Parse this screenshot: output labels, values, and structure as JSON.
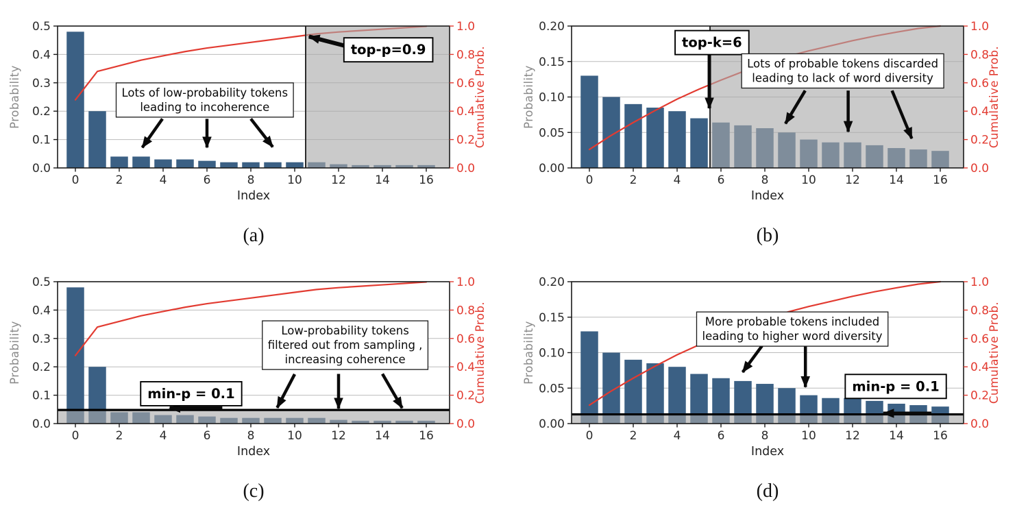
{
  "figure": {
    "xlabel": "Index",
    "ylabel_left": "Probability",
    "ylabel_right": "Cumulative Prob.",
    "colors": {
      "background": "#ffffff",
      "bar": "#3b6084",
      "bar_excluded_appearance": "#8095ab",
      "cumulative_line": "#e23b31",
      "overlay": "rgba(170,170,170,0.62)",
      "grid": "#bcbcbc",
      "spine": "#1a1a1a",
      "tick_label": "#2b2b2b",
      "axis_label_left": "#8a8a8a",
      "axis_label_right": "#e23b31",
      "arrow": "#0a0a0a",
      "annotation_box_border": "#1a1a1a",
      "threshold_line": "#000000",
      "shade_edge": "#2b2b2b",
      "caption": "#111111"
    }
  },
  "chart_data": [
    {
      "id": "a",
      "caption": "(a)",
      "type": "bar+line",
      "xlabel": "Index",
      "ylabel": "Probability",
      "ylabel_right": "Cumulative Prob.",
      "x": [
        0,
        1,
        2,
        3,
        4,
        5,
        6,
        7,
        8,
        9,
        10,
        11,
        12,
        13,
        14,
        15,
        16
      ],
      "bars": [
        0.48,
        0.2,
        0.04,
        0.04,
        0.03,
        0.03,
        0.025,
        0.02,
        0.02,
        0.02,
        0.02,
        0.02,
        0.013,
        0.01,
        0.01,
        0.01,
        0.01
      ],
      "cumulative": [
        0.48,
        0.68,
        0.72,
        0.76,
        0.79,
        0.82,
        0.845,
        0.865,
        0.885,
        0.905,
        0.925,
        0.945,
        0.958,
        0.968,
        0.978,
        0.988,
        0.998
      ],
      "ylim": [
        0,
        0.5
      ],
      "ytick_vals": [
        0,
        0.1,
        0.2,
        0.3,
        0.4,
        0.5
      ],
      "ytick_labels": [
        "0.0",
        "0.1",
        "0.2",
        "0.3",
        "0.4",
        "0.5"
      ],
      "right_tick_vals": [
        0,
        0.2,
        0.4,
        0.6,
        0.8,
        1.0
      ],
      "right_tick_labels": [
        "0.0",
        "0.2",
        "0.4",
        "0.6",
        "0.8",
        "1.0"
      ],
      "xticks": [
        0,
        2,
        4,
        6,
        8,
        10,
        12,
        14,
        16
      ],
      "shade": {
        "mode": "right_of_x",
        "x": 10.5
      },
      "boxes": [
        {
          "style": "note",
          "lines": [
            "Lots of low-probability tokens",
            "leading to incoherence"
          ],
          "cx": 5.9,
          "cy": 0.24
        },
        {
          "style": "label",
          "lines": [
            "top-p=0.9"
          ],
          "cx": 14.27,
          "cy": 0.417
        }
      ],
      "arrows": [
        [
          3.97,
          0.173,
          3.05,
          0.072,
          4.5
        ],
        [
          6.0,
          0.173,
          6.0,
          0.072,
          4.5
        ],
        [
          8.0,
          0.173,
          9.0,
          0.074,
          4.5
        ],
        [
          12.26,
          0.431,
          10.65,
          0.463,
          6
        ]
      ]
    },
    {
      "id": "b",
      "caption": "(b)",
      "type": "bar+line",
      "xlabel": "Index",
      "ylabel": "Probability",
      "ylabel_right": "Cumulative Prob.",
      "x": [
        0,
        1,
        2,
        3,
        4,
        5,
        6,
        7,
        8,
        9,
        10,
        11,
        12,
        13,
        14,
        15,
        16
      ],
      "bars": [
        0.13,
        0.1,
        0.09,
        0.085,
        0.08,
        0.07,
        0.064,
        0.06,
        0.056,
        0.05,
        0.04,
        0.036,
        0.036,
        0.032,
        0.028,
        0.026,
        0.024
      ],
      "cumulative": [
        0.13,
        0.23,
        0.32,
        0.405,
        0.485,
        0.555,
        0.619,
        0.679,
        0.735,
        0.785,
        0.825,
        0.861,
        0.897,
        0.929,
        0.957,
        0.983,
        1.0
      ],
      "ylim": [
        0,
        0.2
      ],
      "ytick_vals": [
        0,
        0.05,
        0.1,
        0.15,
        0.2
      ],
      "ytick_labels": [
        "0.00",
        "0.05",
        "0.10",
        "0.15",
        "0.20"
      ],
      "right_tick_vals": [
        0,
        0.2,
        0.4,
        0.6,
        0.8,
        1.0
      ],
      "right_tick_labels": [
        "0.0",
        "0.2",
        "0.4",
        "0.6",
        "0.8",
        "1.0"
      ],
      "xticks": [
        0,
        2,
        4,
        6,
        8,
        10,
        12,
        14,
        16
      ],
      "shade": {
        "mode": "right_of_x",
        "x": 5.5
      },
      "boxes": [
        {
          "style": "label",
          "lines": [
            "top-k=6"
          ],
          "cx": 5.59,
          "cy": 0.177
        },
        {
          "style": "note",
          "lines": [
            "Lots of probable tokens discarded",
            "leading to lack of word diversity"
          ],
          "cx": 11.55,
          "cy": 0.137
        }
      ],
      "arrows": [
        [
          5.47,
          0.16,
          5.47,
          0.084,
          5
        ],
        [
          9.84,
          0.109,
          8.94,
          0.0625,
          4.5
        ],
        [
          11.8,
          0.109,
          11.8,
          0.051,
          4.5
        ],
        [
          13.8,
          0.109,
          14.7,
          0.0415,
          4.5
        ]
      ]
    },
    {
      "id": "c",
      "caption": "(c)",
      "type": "bar+line",
      "xlabel": "Index",
      "ylabel": "Probability",
      "ylabel_right": "Cumulative Prob.",
      "x": [
        0,
        1,
        2,
        3,
        4,
        5,
        6,
        7,
        8,
        9,
        10,
        11,
        12,
        13,
        14,
        15,
        16
      ],
      "bars": [
        0.48,
        0.2,
        0.04,
        0.04,
        0.03,
        0.03,
        0.025,
        0.02,
        0.02,
        0.02,
        0.02,
        0.02,
        0.013,
        0.01,
        0.01,
        0.01,
        0.01
      ],
      "cumulative": [
        0.48,
        0.68,
        0.72,
        0.76,
        0.79,
        0.82,
        0.845,
        0.865,
        0.885,
        0.905,
        0.925,
        0.945,
        0.958,
        0.968,
        0.978,
        0.988,
        0.998
      ],
      "ylim": [
        0,
        0.5
      ],
      "ytick_vals": [
        0,
        0.1,
        0.2,
        0.3,
        0.4,
        0.5
      ],
      "ytick_labels": [
        "0.0",
        "0.1",
        "0.2",
        "0.3",
        "0.4",
        "0.5"
      ],
      "right_tick_vals": [
        0,
        0.2,
        0.4,
        0.6,
        0.8,
        1.0
      ],
      "right_tick_labels": [
        "0.0",
        "0.2",
        "0.4",
        "0.6",
        "0.8",
        "1.0"
      ],
      "xticks": [
        0,
        2,
        4,
        6,
        8,
        10,
        12,
        14,
        16
      ],
      "shade": {
        "mode": "below_y",
        "y": 0.048
      },
      "boxes": [
        {
          "style": "label",
          "lines": [
            "min-p = 0.1"
          ],
          "cx": 5.28,
          "cy": 0.106
        },
        {
          "style": "note",
          "lines": [
            "Low-probability tokens",
            "filtered out from sampling ,",
            "increasing coherence"
          ],
          "cx": 12.3,
          "cy": 0.277
        }
      ],
      "arrows": [
        [
          6.7,
          0.0545,
          4.3,
          0.0545,
          5
        ],
        [
          10.0,
          0.174,
          9.2,
          0.056,
          4.5
        ],
        [
          12.0,
          0.175,
          12.0,
          0.053,
          4.5
        ],
        [
          14.0,
          0.175,
          14.9,
          0.055,
          4.5
        ]
      ]
    },
    {
      "id": "d",
      "caption": "(d)",
      "type": "bar+line",
      "xlabel": "Index",
      "ylabel": "Probability",
      "ylabel_right": "Cumulative Prob.",
      "x": [
        0,
        1,
        2,
        3,
        4,
        5,
        6,
        7,
        8,
        9,
        10,
        11,
        12,
        13,
        14,
        15,
        16
      ],
      "bars": [
        0.13,
        0.1,
        0.09,
        0.085,
        0.08,
        0.07,
        0.064,
        0.06,
        0.056,
        0.05,
        0.04,
        0.036,
        0.036,
        0.032,
        0.028,
        0.026,
        0.024
      ],
      "cumulative": [
        0.13,
        0.23,
        0.32,
        0.405,
        0.485,
        0.555,
        0.619,
        0.679,
        0.735,
        0.785,
        0.825,
        0.861,
        0.897,
        0.929,
        0.957,
        0.983,
        1.0
      ],
      "ylim": [
        0,
        0.2
      ],
      "ytick_vals": [
        0,
        0.05,
        0.1,
        0.15,
        0.2
      ],
      "ytick_labels": [
        "0.00",
        "0.05",
        "0.10",
        "0.15",
        "0.20"
      ],
      "right_tick_vals": [
        0,
        0.2,
        0.4,
        0.6,
        0.8,
        1.0
      ],
      "right_tick_labels": [
        "0.0",
        "0.2",
        "0.4",
        "0.6",
        "0.8",
        "1.0"
      ],
      "xticks": [
        0,
        2,
        4,
        6,
        8,
        10,
        12,
        14,
        16
      ],
      "shade": {
        "mode": "below_y",
        "y": 0.013
      },
      "boxes": [
        {
          "style": "note",
          "lines": [
            "More probable tokens included",
            "leading to higher word diversity"
          ],
          "cx": 9.25,
          "cy": 0.1335
        },
        {
          "style": "label",
          "lines": [
            "min-p = 0.1"
          ],
          "cx": 13.97,
          "cy": 0.0527
        }
      ],
      "arrows": [
        [
          15.6,
          0.0145,
          13.4,
          0.0145,
          5
        ],
        [
          7.87,
          0.1095,
          6.99,
          0.0725,
          4.5
        ],
        [
          9.85,
          0.1095,
          9.85,
          0.0515,
          4.5
        ]
      ]
    }
  ]
}
